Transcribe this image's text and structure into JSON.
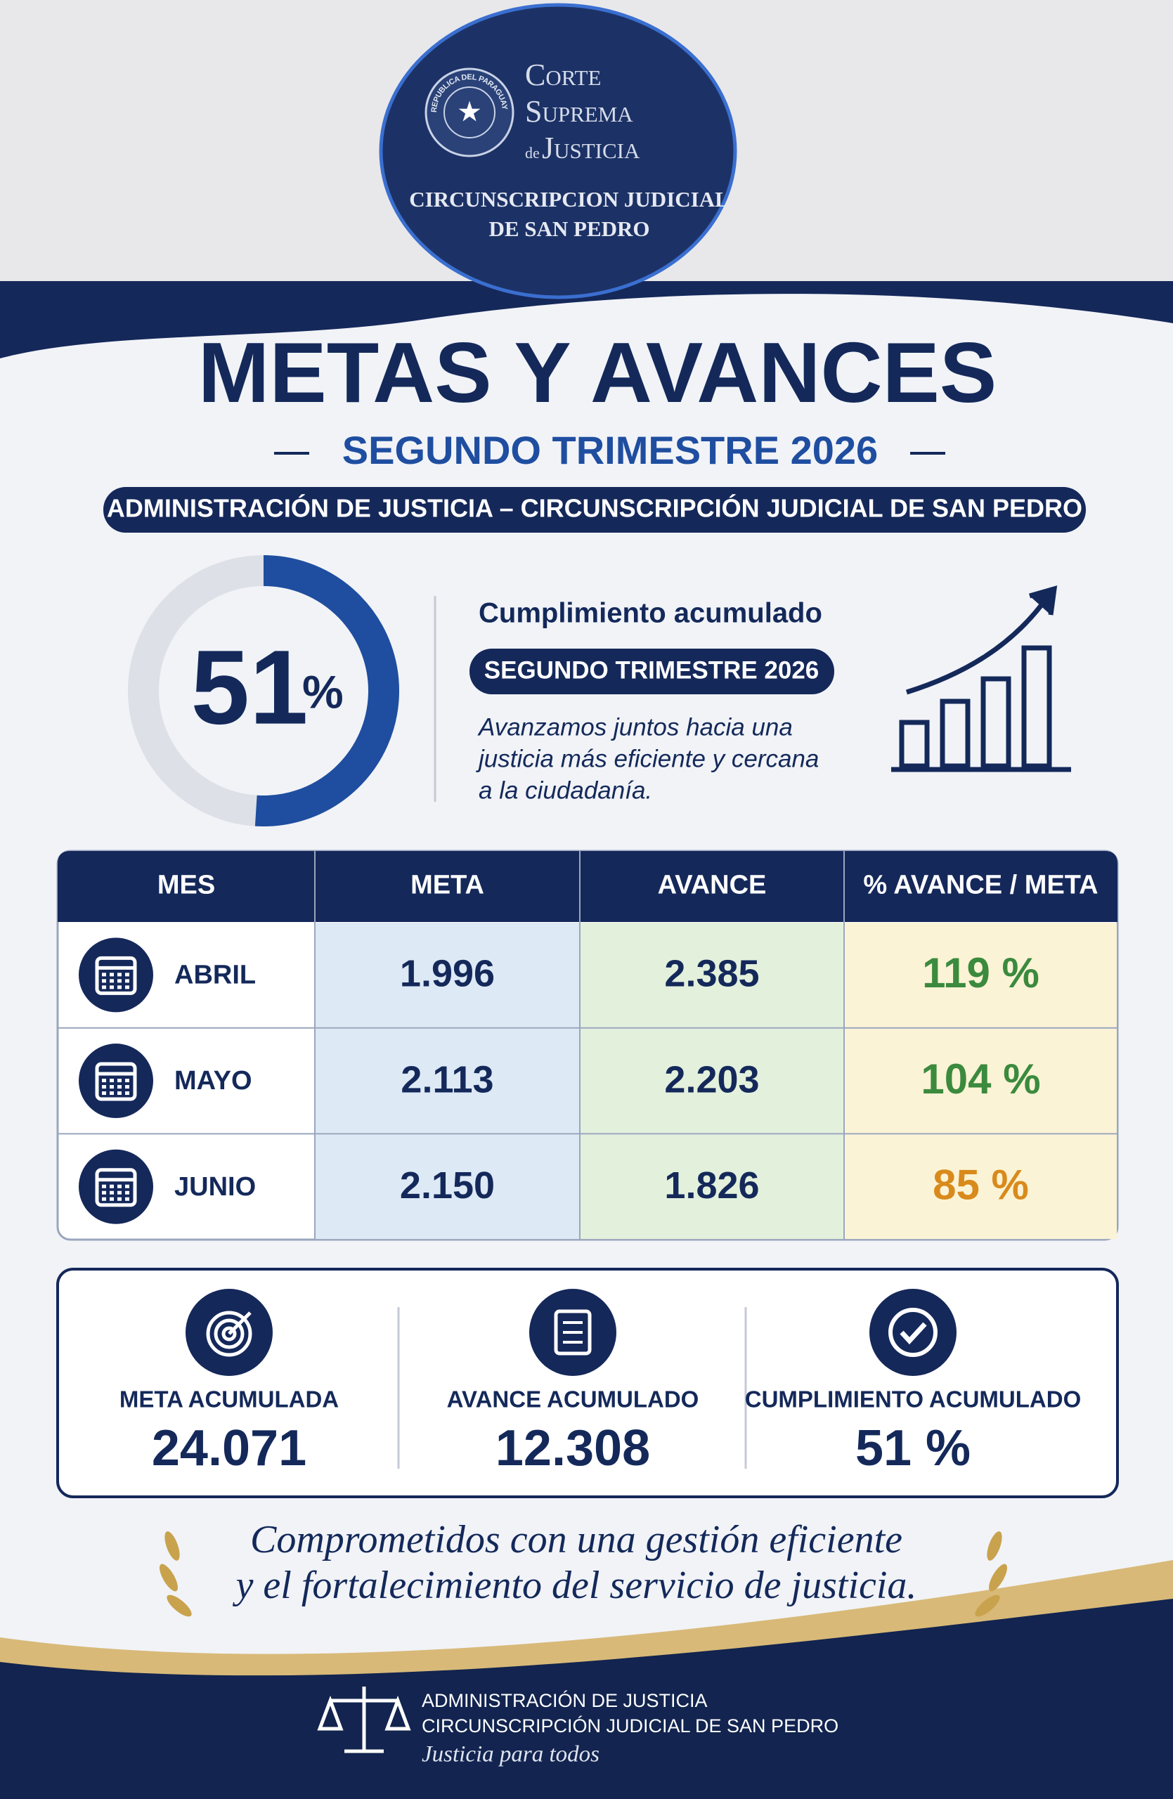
{
  "logo": {
    "seal_text": "REPUBLICA DEL PARAGUAY",
    "line1": "Corte",
    "line2": "Suprema",
    "de": "de",
    "line3": "Justicia",
    "sub1": "CIRCUNSCRIPCION JUDICIAL",
    "sub2": "DE SAN PEDRO"
  },
  "header": {
    "title": "METAS Y AVANCES",
    "subtitle": "SEGUNDO TRIMESTRE 2026",
    "banner": "ADMINISTRACIÓN DE JUSTICIA – CIRCUNSCRIPCIÓN JUDICIAL DE SAN PEDRO"
  },
  "summary": {
    "gauge": {
      "value": 51,
      "unit": "%",
      "color": "#1f4ea0"
    },
    "heading": "Cumplimiento acumulado",
    "pill": "SEGUNDO TRIMESTRE 2026",
    "text": [
      "Avanzamos juntos hacia una",
      "justicia más eficiente y cercana",
      "a la ciudadanía."
    ]
  },
  "table": {
    "columns": [
      "MES",
      "META",
      "AVANCE",
      "% AVANCE / META"
    ],
    "rows": [
      [
        "ABRIL",
        "1.996",
        "2.385",
        "119 %"
      ],
      [
        "MAYO",
        "2.113",
        "2.203",
        "104 %"
      ],
      [
        "JUNIO",
        "2.150",
        "1.826",
        "85 %"
      ]
    ],
    "value_colors": [
      "#3b8a3e",
      "#3b8a3e",
      "#d98a1c"
    ]
  },
  "totals": [
    {
      "label": "META ACUMULADA",
      "value": "24.071"
    },
    {
      "label": "AVANCE ACUMULADO",
      "value": "12.308"
    },
    {
      "label": "CUMPLIMIENTO ACUMULADO",
      "value": "51 %"
    }
  ],
  "closing": [
    "Comprometidos con una gestión eficiente",
    "y el fortalecimiento del servicio de justicia."
  ],
  "footer": {
    "line1": "ADMINISTRACIÓN DE JUSTICIA",
    "line2": "CIRCUNSCRIPCIÓN JUDICIAL DE SAN PEDRO",
    "tagline": "Justicia para todos"
  }
}
